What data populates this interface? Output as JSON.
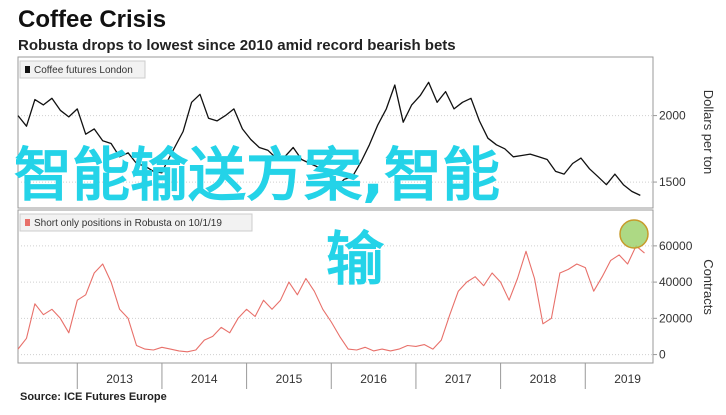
{
  "header": {
    "title": "Coffee Crisis",
    "subtitle": "Robusta drops to lowest since 2010 amid record bearish bets"
  },
  "source": {
    "label": "Source:",
    "text": "ICE Futures Europe"
  },
  "overlay": {
    "line1": "智能输送方案,智能",
    "line2": "输"
  },
  "colors": {
    "price_line": "#111111",
    "positions_line": "#e8706a",
    "highlight_fill": "#9fd26e",
    "highlight_stroke": "#c79a2a",
    "overlay_text": "#24d3e8"
  },
  "chart_data": [
    {
      "type": "line",
      "legend": "Coffee futures London",
      "ylabel": "Dollars per ton",
      "yticks": [
        1500,
        2000
      ],
      "ylim": [
        1320,
        2230
      ],
      "xlim": [
        2012.3,
        2019.8
      ],
      "series": [
        {
          "name": "Coffee futures London",
          "x": [
            2012.3,
            2012.4,
            2012.5,
            2012.6,
            2012.7,
            2012.8,
            2012.9,
            2013.0,
            2013.1,
            2013.2,
            2013.3,
            2013.4,
            2013.5,
            2013.6,
            2013.7,
            2013.8,
            2013.9,
            2014.0,
            2014.05,
            2014.15,
            2014.25,
            2014.35,
            2014.45,
            2014.55,
            2014.65,
            2014.75,
            2014.85,
            2014.95,
            2015.05,
            2015.15,
            2015.25,
            2015.35,
            2015.45,
            2015.55,
            2015.65,
            2015.75,
            2015.85,
            2015.95,
            2016.05,
            2016.15,
            2016.25,
            2016.35,
            2016.45,
            2016.55,
            2016.65,
            2016.75,
            2016.85,
            2016.95,
            2017.05,
            2017.15,
            2017.25,
            2017.35,
            2017.45,
            2017.55,
            2017.65,
            2017.75,
            2017.85,
            2017.95,
            2018.05,
            2018.15,
            2018.25,
            2018.35,
            2018.45,
            2018.55,
            2018.65,
            2018.75,
            2018.85,
            2018.95,
            2019.05,
            2019.15,
            2019.25,
            2019.35,
            2019.45,
            2019.55,
            2019.65
          ],
          "y": [
            2000,
            1920,
            2120,
            2080,
            2130,
            2040,
            1990,
            2050,
            1860,
            1900,
            1810,
            1790,
            1690,
            1720,
            1640,
            1620,
            1580,
            1570,
            1640,
            1760,
            1880,
            2100,
            2160,
            1980,
            1960,
            2000,
            2050,
            1900,
            1820,
            1760,
            1740,
            1680,
            1690,
            1760,
            1670,
            1640,
            1610,
            1590,
            1450,
            1520,
            1540,
            1650,
            1780,
            1930,
            2050,
            2230,
            1950,
            2080,
            2150,
            2250,
            2100,
            2180,
            2050,
            2100,
            2130,
            1960,
            1830,
            1780,
            1750,
            1690,
            1700,
            1710,
            1690,
            1670,
            1580,
            1560,
            1640,
            1680,
            1600,
            1540,
            1480,
            1560,
            1480,
            1430,
            1400
          ]
        }
      ]
    },
    {
      "type": "line",
      "legend": "Short only positions in Robusta on 10/1/19",
      "ylabel": "Contracts",
      "yticks": [
        0,
        20000,
        40000,
        60000
      ],
      "ylim": [
        -3000,
        66000
      ],
      "xlim": [
        2012.3,
        2019.8
      ],
      "xticks": [
        "2013",
        "2014",
        "2015",
        "2016",
        "2017",
        "2018",
        "2019"
      ],
      "series": [
        {
          "name": "Short only positions in Robusta on 10/1/19",
          "x": [
            2012.3,
            2012.4,
            2012.5,
            2012.6,
            2012.7,
            2012.8,
            2012.9,
            2013.0,
            2013.1,
            2013.2,
            2013.3,
            2013.4,
            2013.5,
            2013.6,
            2013.7,
            2013.8,
            2013.9,
            2014.0,
            2014.1,
            2014.2,
            2014.3,
            2014.4,
            2014.5,
            2014.6,
            2014.7,
            2014.8,
            2014.9,
            2015.0,
            2015.1,
            2015.2,
            2015.3,
            2015.4,
            2015.5,
            2015.6,
            2015.7,
            2015.8,
            2015.9,
            2016.0,
            2016.1,
            2016.2,
            2016.3,
            2016.4,
            2016.5,
            2016.6,
            2016.7,
            2016.8,
            2016.9,
            2017.0,
            2017.1,
            2017.2,
            2017.3,
            2017.4,
            2017.5,
            2017.6,
            2017.7,
            2017.8,
            2017.9,
            2018.0,
            2018.1,
            2018.2,
            2018.3,
            2018.4,
            2018.5,
            2018.6,
            2018.7,
            2018.8,
            2018.9,
            2019.0,
            2019.1,
            2019.2,
            2019.3,
            2019.4,
            2019.5,
            2019.6,
            2019.7
          ],
          "y": [
            3000,
            9000,
            28000,
            22000,
            25000,
            20000,
            12000,
            30000,
            33000,
            45000,
            50000,
            40000,
            25000,
            20000,
            5000,
            3000,
            2500,
            4000,
            3000,
            2000,
            1500,
            2500,
            8000,
            10000,
            15000,
            12000,
            20000,
            25000,
            21000,
            30000,
            25000,
            30000,
            40000,
            33000,
            42000,
            35000,
            25000,
            18000,
            10000,
            3000,
            2500,
            4000,
            2000,
            3000,
            2000,
            3000,
            5000,
            4500,
            5500,
            3000,
            8000,
            22000,
            35000,
            40000,
            43000,
            38000,
            45000,
            40000,
            30000,
            42000,
            57000,
            42000,
            17000,
            20000,
            45000,
            47000,
            50000,
            48000,
            35000,
            43000,
            52000,
            55000,
            50000,
            60000,
            56000
          ]
        }
      ]
    }
  ]
}
